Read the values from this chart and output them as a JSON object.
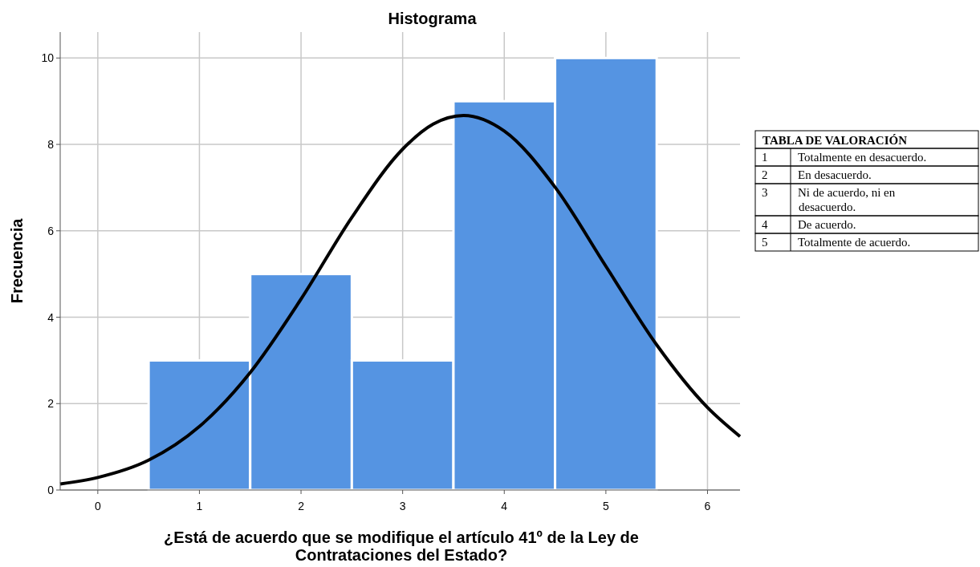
{
  "chart_data": [
    {
      "type": "histogram",
      "title": "Histograma",
      "xlabel": "¿Está de acuerdo que se modifique el artículo 41º de la Ley de Contrataciones del Estado?",
      "ylabel": "Frecuencia",
      "bins": [
        0.5,
        1.5,
        2.5,
        3.5,
        4.5,
        5.5
      ],
      "values": [
        3,
        5,
        3,
        9,
        10
      ],
      "color": "#5594e2",
      "xlim": [
        -0.37,
        6.32
      ],
      "ylim": [
        0,
        10.6
      ],
      "xticks": [
        0,
        1,
        2,
        3,
        4,
        5,
        6
      ],
      "yticks": [
        0,
        2,
        4,
        6,
        8,
        10
      ],
      "grid": true,
      "series": [
        {
          "type": "line",
          "color": "#000000",
          "x": [
            -0.37,
            0,
            0.5,
            1,
            1.5,
            2,
            2.5,
            3,
            3.3,
            3.6,
            4,
            4.5,
            5,
            5.5,
            6,
            6.32
          ],
          "values": [
            0.14,
            0.29,
            0.69,
            1.47,
            2.72,
            4.42,
            6.31,
            7.89,
            8.47,
            8.67,
            8.31,
            7.01,
            5.18,
            3.36,
            1.91,
            1.24
          ]
        }
      ]
    },
    {
      "type": "other",
      "title": "TABLA DE VALORACIÓN",
      "annotations": [
        "1 Totalmente en desacuerdo.",
        "2 En desacuerdo.",
        "3 Ni de acuerdo, ni en desacuerdo.",
        "4 De acuerdo.",
        "5 Totalmente de acuerdo."
      ]
    }
  ]
}
